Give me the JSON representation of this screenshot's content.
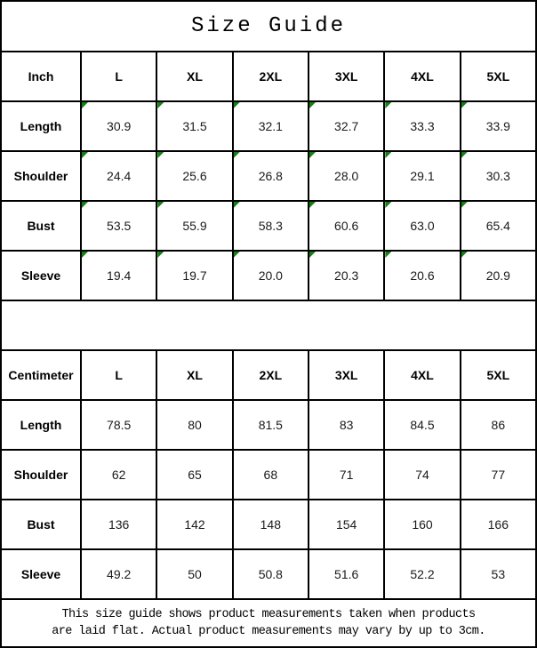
{
  "title": "Size Guide",
  "colors": {
    "flag_green": "#128112",
    "border_black": "#000000",
    "background": "#ffffff"
  },
  "inch_table": {
    "header": [
      "Inch",
      "L",
      "XL",
      "2XL",
      "3XL",
      "4XL",
      "5XL"
    ],
    "rows": [
      {
        "label": "Length",
        "values": [
          "30.9",
          "31.5",
          "32.1",
          "32.7",
          "33.3",
          "33.9"
        ]
      },
      {
        "label": "Shoulder",
        "values": [
          "24.4",
          "25.6",
          "26.8",
          "28.0",
          "29.1",
          "30.3"
        ]
      },
      {
        "label": "Bust",
        "values": [
          "53.5",
          "55.9",
          "58.3",
          "60.6",
          "63.0",
          "65.4"
        ]
      },
      {
        "label": "Sleeve",
        "values": [
          "19.4",
          "19.7",
          "20.0",
          "20.3",
          "20.6",
          "20.9"
        ]
      }
    ]
  },
  "cm_table": {
    "header": [
      "Centimeter",
      "L",
      "XL",
      "2XL",
      "3XL",
      "4XL",
      "5XL"
    ],
    "rows": [
      {
        "label": "Length",
        "values": [
          "78.5",
          "80",
          "81.5",
          "83",
          "84.5",
          "86"
        ]
      },
      {
        "label": "Shoulder",
        "values": [
          "62",
          "65",
          "68",
          "71",
          "74",
          "77"
        ]
      },
      {
        "label": "Bust",
        "values": [
          "136",
          "142",
          "148",
          "154",
          "160",
          "166"
        ]
      },
      {
        "label": "Sleeve",
        "values": [
          "49.2",
          "50",
          "50.8",
          "51.6",
          "52.2",
          "53"
        ]
      }
    ]
  },
  "footer": {
    "line1": "This size guide shows product measurements taken when products",
    "line2": "are laid flat. Actual product measurements may vary by up to 3cm."
  }
}
